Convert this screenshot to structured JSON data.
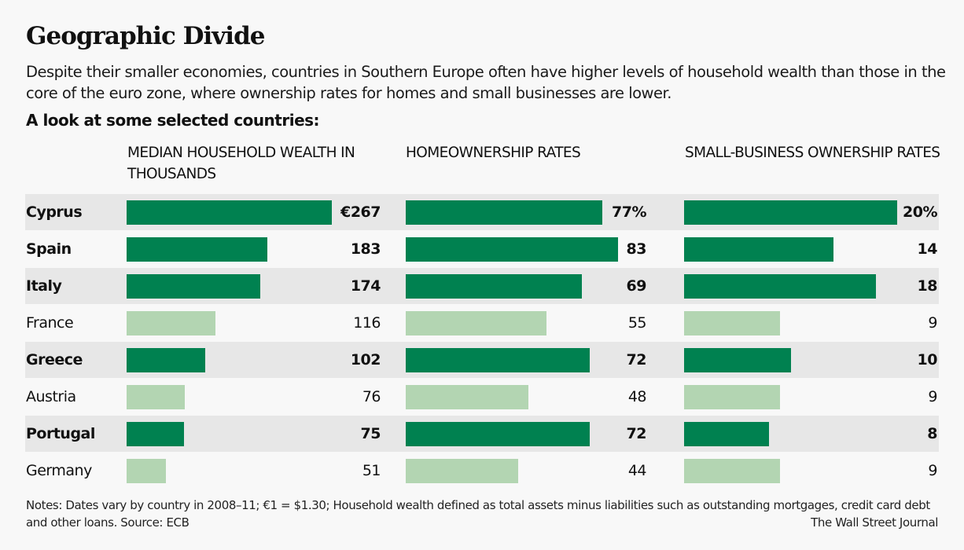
{
  "header": {
    "title": "Geographic Divide",
    "dek": "Despite their smaller economies, countries in Southern Europe often have higher levels of household wealth than those in the core of the euro zone, where ownership rates for homes and small businesses are lower.",
    "lead": "A look at some selected countries:"
  },
  "colors": {
    "highlight_bar": "#008150",
    "other_bar": "#b3d5b2",
    "row_shade": "#e7e7e7"
  },
  "chart_data": {
    "type": "bar",
    "orientation": "horizontal",
    "title": "Geographic Divide",
    "categories": [
      "Cyprus",
      "Spain",
      "Italy",
      "France",
      "Greece",
      "Austria",
      "Portugal",
      "Germany"
    ],
    "highlighted": [
      true,
      true,
      true,
      false,
      true,
      false,
      true,
      false
    ],
    "series": [
      {
        "name": "MEDIAN HOUSEHOLD WEALTH IN THOUSANDS",
        "unit": "€ thousands",
        "values": [
          267,
          183,
          174,
          116,
          102,
          76,
          75,
          51
        ],
        "labels": [
          "€267",
          "183",
          "174",
          "116",
          "102",
          "76",
          "75",
          "51"
        ],
        "max": 267
      },
      {
        "name": "HOMEOWNERSHIP RATES",
        "unit": "%",
        "values": [
          77,
          83,
          69,
          55,
          72,
          48,
          72,
          44
        ],
        "labels": [
          "77%",
          "83",
          "69",
          "55",
          "72",
          "48",
          "72",
          "44"
        ],
        "max": 83
      },
      {
        "name": "SMALL-BUSINESS OWNERSHIP RATES",
        "unit": "%",
        "values": [
          20,
          14,
          18,
          9,
          10,
          9,
          8,
          9
        ],
        "labels": [
          "20%",
          "14",
          "18",
          "9",
          "10",
          "9",
          "8",
          "9"
        ],
        "max": 20
      }
    ],
    "xlabel": "",
    "ylabel": "",
    "grid": false,
    "legend": "none"
  },
  "footer": {
    "notes": "Notes: Dates vary by country in 2008–11; €1 = $1.30; Household wealth defined as total assets minus liabilities such as outstanding mortgages, credit card debt and other loans. Source: ECB",
    "credit": "The Wall Street Journal"
  }
}
